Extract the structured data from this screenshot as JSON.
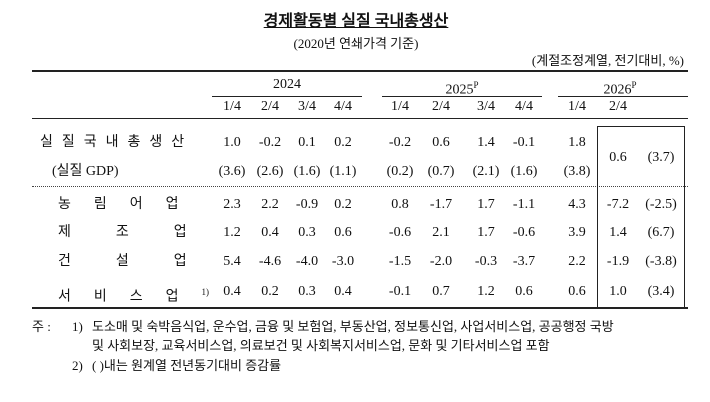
{
  "header": {
    "title": "경제활동별 실질 국내총생산",
    "subtitle": "(2020년 연쇄가격 기준)",
    "unit": "(계절조정계열, 전기대비, %)"
  },
  "table": {
    "years": [
      {
        "label": "2024"
      },
      {
        "label": "2025",
        "mark": "P"
      },
      {
        "label": "2026",
        "mark": "P"
      }
    ],
    "quarters": [
      "1/4",
      "2/4",
      "3/4",
      "4/4",
      "1/4",
      "2/4",
      "3/4",
      "4/4",
      "1/4",
      "2/4"
    ],
    "rows": [
      {
        "label": "실질국내총생산",
        "values": [
          "1.0",
          "-0.2",
          "0.1",
          "0.2",
          "-0.2",
          "0.6",
          "1.4",
          "-0.1",
          "1.8",
          "0.6"
        ],
        "yoy": "(3.7)",
        "sub_label": "(실질 GDP)",
        "sub_values": [
          "(3.6)",
          "(2.6)",
          "(1.6)",
          "(1.1)",
          "(0.2)",
          "(0.7)",
          "(2.1)",
          "(1.6)",
          "(3.8)"
        ]
      },
      {
        "label": "농림어업",
        "values": [
          "2.3",
          "2.2",
          "-0.9",
          "0.2",
          "0.8",
          "-1.7",
          "1.7",
          "-1.1",
          "4.3",
          "-7.2"
        ],
        "yoy": "(-2.5)"
      },
      {
        "label": "제조업",
        "values": [
          "1.2",
          "0.4",
          "0.3",
          "0.6",
          "-0.6",
          "2.1",
          "1.7",
          "-0.6",
          "3.9",
          "1.4"
        ],
        "yoy": "(6.7)"
      },
      {
        "label": "건설업",
        "values": [
          "5.4",
          "-4.6",
          "-4.0",
          "-3.0",
          "-1.5",
          "-2.0",
          "-0.3",
          "-3.7",
          "2.2",
          "-1.9"
        ],
        "yoy": "(-3.8)"
      },
      {
        "label": "서비스업",
        "label_note": "1)",
        "values": [
          "0.4",
          "0.2",
          "0.3",
          "0.4",
          "-0.1",
          "0.7",
          "1.2",
          "0.6",
          "0.6",
          "1.0"
        ],
        "yoy": "(3.4)"
      }
    ]
  },
  "notes": {
    "prefix": "주 :",
    "items": [
      {
        "marker": "1)",
        "text": "도소매 및 숙박음식업, 운수업, 금융 및 보험업, 부동산업, 정보통신업, 사업서비스업, 공공행정 국방",
        "text_cont": "및 사회보장, 교육서비스업, 의료보건 및 사회복지서비스업, 문화 및 기타서비스업 포함"
      },
      {
        "marker": "2)",
        "text": "( )내는 원계열 전년동기대비 증감률"
      }
    ]
  }
}
